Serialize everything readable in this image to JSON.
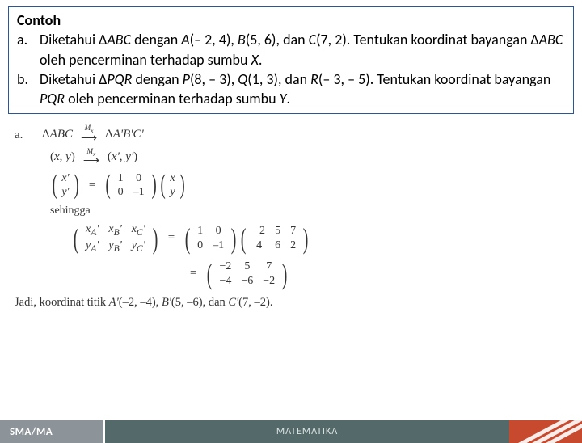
{
  "box": {
    "title": "Contoh",
    "a_letter": "a.",
    "a_text": "Diketahui Δ<i class='var'>ABC</i> dengan <i class='var'>A</i>(– 2, 4), <i class='var'>B</i>(5, 6), dan <i class='var'>C</i>(7, 2). Tentukan koordinat bayangan Δ<i class='var'>ABC</i> oleh pencerminan terhadap sumbu <i class='var'>X</i>.",
    "b_letter": "b.",
    "b_text": "Diketahui Δ<i class='var'>PQR</i> dengan <i class='var'>P</i>(8, – 3), <i class='var'>Q</i>(1, 3), dan <i class='var'>R</i>(– 3, – 5). Tentukan koordinat bayangan <i class='var'>PQR</i> oleh pencerminan terhadap sumbu <i class='var'>Y</i>."
  },
  "sol": {
    "letter": "a.",
    "map1_left": "Δ<i class='var'>ABC</i>",
    "map1_label": "M<sub>x</sub>",
    "map1_right": "Δ<i class='var'>A'B'C'</i>",
    "map2_left": "(<i class='var'>x</i>, <i class='var'>y</i>)",
    "map2_right": "(<i class='var'>x'</i>, <i class='var'>y'</i>)",
    "vec_top": "<i class='var'>x'</i>",
    "vec_bot": "<i class='var'>y'</i>",
    "eq": "=",
    "m00": "1",
    "m01": "0",
    "m10": "0",
    "m11": "–1",
    "vec2_top": "<i class='var'>x</i>",
    "vec2_bot": "<i class='var'>y</i>",
    "sehingga": "sehingga",
    "lhs_c1t": "<i class='var'>x<sub>A</sub>'</i>",
    "lhs_c1b": "<i class='var'>y<sub>A</sub>'</i>",
    "lhs_c2t": "<i class='var'>x<sub>B</sub>'</i>",
    "lhs_c2b": "<i class='var'>y<sub>B</sub>'</i>",
    "lhs_c3t": "<i class='var'>x<sub>C</sub>'</i>",
    "lhs_c3b": "<i class='var'>y<sub>C</sub>'</i>",
    "pts_c1t": "−2",
    "pts_c1b": "4",
    "pts_c2t": "5",
    "pts_c2b": "6",
    "pts_c3t": "7",
    "pts_c3b": "2",
    "res_c1t": "−2",
    "res_c1b": "−4",
    "res_c2t": "5",
    "res_c2b": "−6",
    "res_c3t": "7",
    "res_c3b": "−2",
    "conclusion": "Jadi, koordinat titik <i class='var'>A'</i>(–2, –4), <i class='var'>B'</i>(5, –6), dan <i class='var'>C'</i>(7, –2)."
  },
  "footer": {
    "left": "SMA/MA",
    "mid": "MATEMATIKA"
  }
}
